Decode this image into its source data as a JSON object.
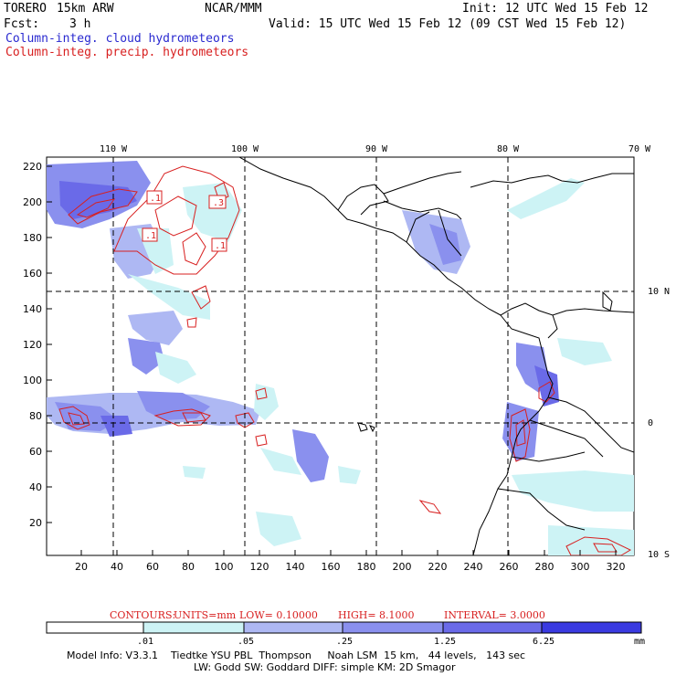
{
  "header": {
    "model_name": "TORERO",
    "resolution": "15km ARW",
    "org": "NCAR/MMM",
    "init": "Init: 12 UTC Wed 15 Feb 12",
    "fcst_label": "Fcst:",
    "fcst_value": "3 h",
    "valid": "Valid: 15 UTC Wed 15 Feb 12 (09 CST Wed 15 Feb 12)",
    "line1": "Column-integ. cloud hydrometeors",
    "line2": "Column-integ. precip. hydrometeors"
  },
  "colors": {
    "cloud_line": "#2a2ad0",
    "precip_line": "#d82020",
    "shade_levels": [
      "#ffffff",
      "#cdf3f5",
      "#aeb8f3",
      "#8a90ee",
      "#6a6ae8",
      "#3a3ae0",
      "#1e1ed8"
    ]
  },
  "map": {
    "top_lon_labels": [
      "110 W",
      "100 W",
      "90 W",
      "80 W",
      "70 W"
    ],
    "right_lat_labels": [
      "10 N",
      "0",
      "10 S"
    ],
    "left_ticks": [
      "220",
      "200",
      "180",
      "160",
      "140",
      "120",
      "100",
      "80",
      "60",
      "40",
      "20"
    ],
    "bottom_ticks": [
      "20",
      "40",
      "60",
      "80",
      "100",
      "120",
      "140",
      "160",
      "180",
      "200",
      "220",
      "240",
      "260",
      "280",
      "300",
      "320"
    ],
    "contour_labels": [
      ".1",
      ".3",
      ".1",
      ".1"
    ]
  },
  "contours_info": {
    "label": "CONTOURS:",
    "units": "UNITS=mm",
    "low": "LOW= 0.10000",
    "high": "HIGH= 8.1000",
    "interval": "INTERVAL= 3.0000"
  },
  "colorbar": {
    "labels": [
      ".01",
      ".05",
      ".25",
      "1.25",
      "6.25"
    ],
    "unit": "mm"
  },
  "model_info": {
    "line1": "Model Info: V3.3.1    Tiedtke YSU PBL  Thompson     Noah LSM  15 km,   44 levels,   143 sec",
    "line2": "LW: Godd SW: Goddard DIFF: simple KM: 2D Smagor"
  }
}
